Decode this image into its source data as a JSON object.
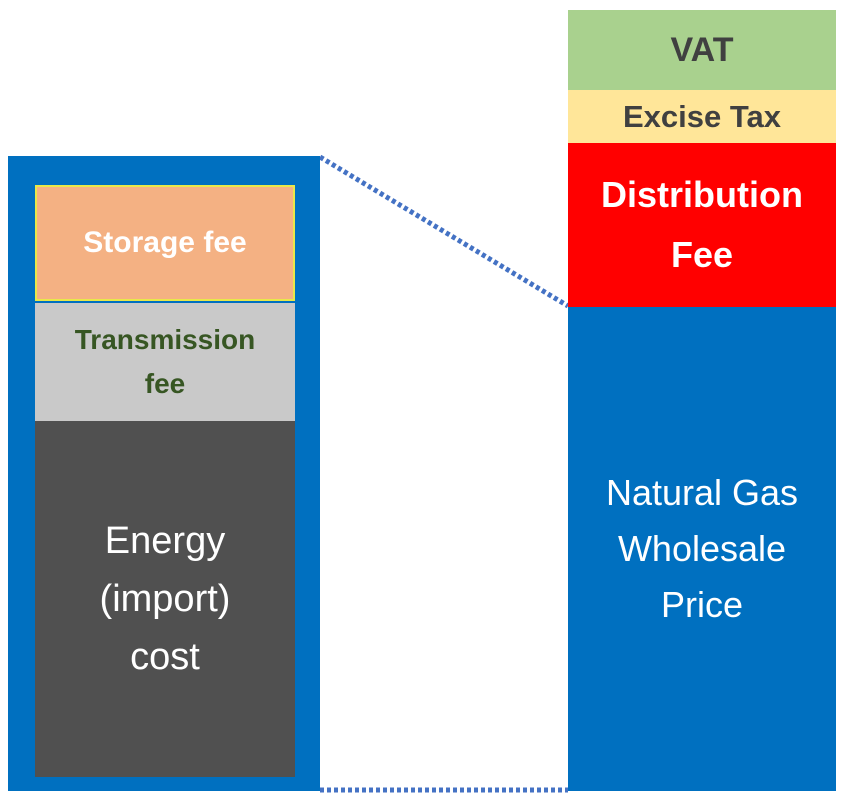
{
  "left_stack": {
    "segments": [
      {
        "lines": [
          "Storage fee"
        ]
      },
      {
        "lines": [
          "Transmission",
          "fee"
        ]
      },
      {
        "lines": [
          "Energy",
          "(import)",
          "cost"
        ]
      }
    ]
  },
  "right_stack": {
    "segments": [
      {
        "lines": [
          "VAT"
        ]
      },
      {
        "lines": [
          "Excise Tax"
        ]
      },
      {
        "lines": [
          "Distribution",
          "Fee"
        ]
      },
      {
        "lines": [
          "Natural Gas",
          "Wholesale",
          "Price"
        ]
      }
    ]
  }
}
